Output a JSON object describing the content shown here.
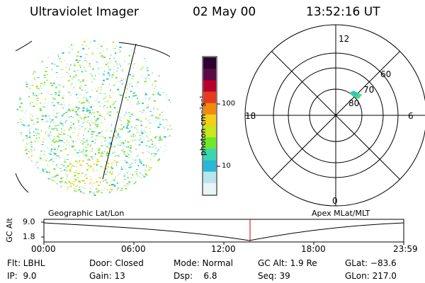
{
  "header": {
    "instrument": "Ultraviolet Imager",
    "date": "02 May 00",
    "time": "13:52:16 UT"
  },
  "colorbar": {
    "unit_label": "photon cm⁻²s⁻¹",
    "ticks": [
      "100",
      "10"
    ],
    "scale": "log",
    "colors": [
      "#2b0032",
      "#5a0a46",
      "#b8002a",
      "#e83a1e",
      "#f08a10",
      "#f2d018",
      "#c6e81c",
      "#6ee82a",
      "#3ad6b2",
      "#2ab6d6",
      "#b8e6ee",
      "#e8f4f6"
    ]
  },
  "polar_plot": {
    "top_label": "12",
    "left_label": "18",
    "right_label": "6",
    "bottom_label": "0",
    "ring_labels": [
      "60",
      "70",
      "80"
    ]
  },
  "lower_panel": {
    "left_label": "Geographic Lat/Lon",
    "right_label": "Apex MLat/MLT",
    "ylabel": "GC Alt",
    "y_ticks": [
      "9.0",
      "1.8"
    ],
    "x_ticks": [
      "00:00",
      "06:00",
      "12:00",
      "18:00",
      "23:59"
    ],
    "marker_color": "#cc0000"
  },
  "info": {
    "flt": "Flt: LBHL",
    "ip": "IP:  9.0",
    "door": "Door: Closed",
    "gain": "Gain: 13",
    "mode": "Mode: Normal",
    "dsp": "Dsp:    6.8",
    "gcalt": "GC Alt: 1.9 Re",
    "seq": "Seq: 39",
    "glat": "GLat: −83.6",
    "glon": "GLon: 217.0"
  }
}
